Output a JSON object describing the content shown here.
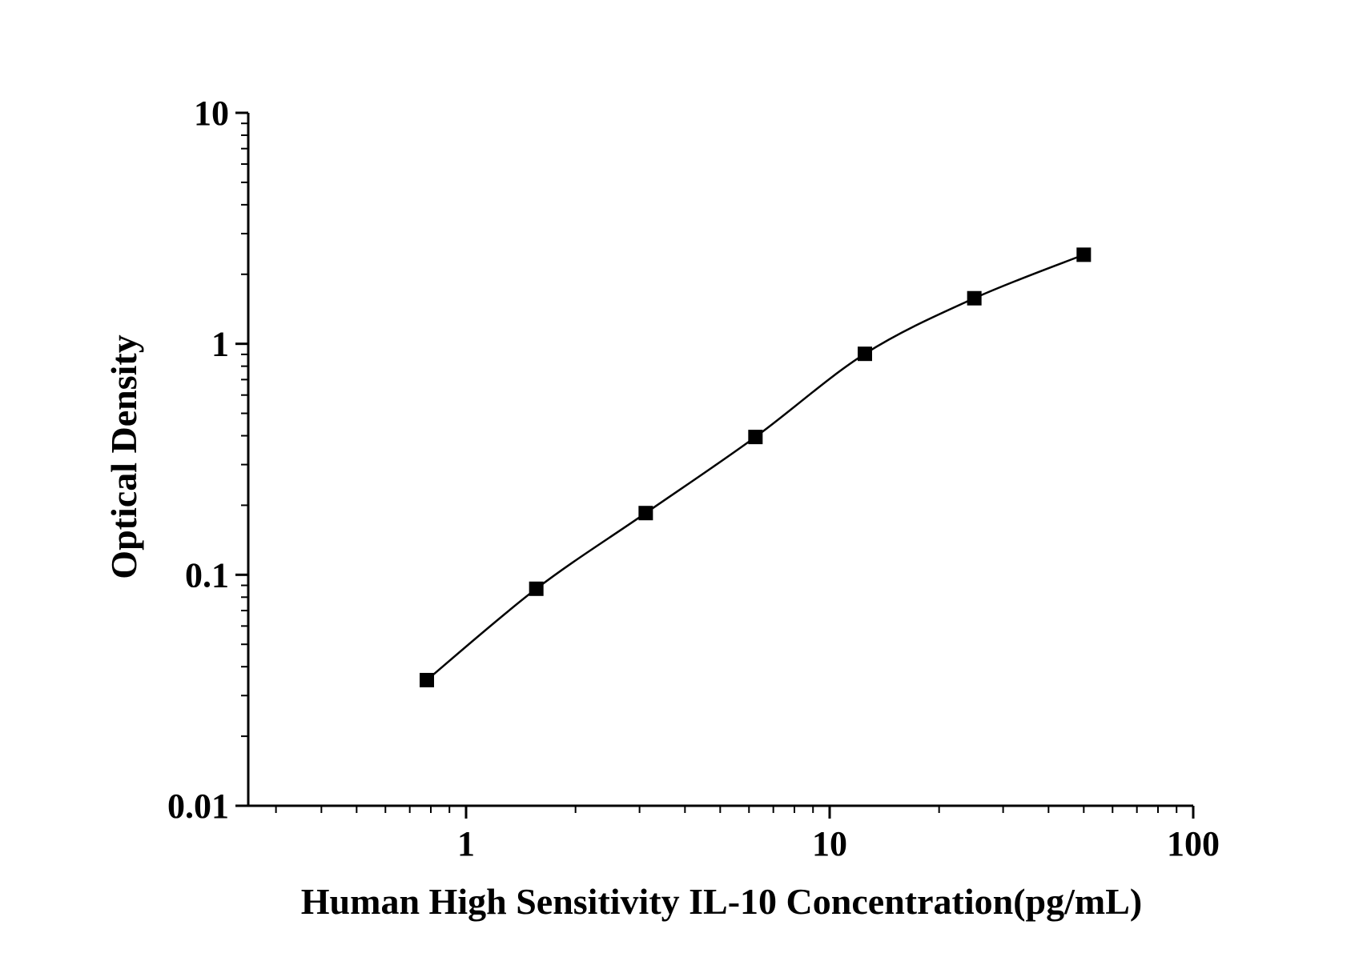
{
  "chart_data": {
    "type": "scatter",
    "title": "",
    "xlabel": "Human High Sensitivity IL-10 Concentration(pg/mL)",
    "ylabel": "Optical Density",
    "xscale": "log",
    "yscale": "log",
    "xlim": [
      0.25,
      100
    ],
    "ylim": [
      0.01,
      10
    ],
    "x_ticks": [
      {
        "value": 1,
        "label": "1"
      },
      {
        "value": 10,
        "label": "10"
      },
      {
        "value": 100,
        "label": "100"
      }
    ],
    "y_ticks": [
      {
        "value": 0.01,
        "label": "0.01"
      },
      {
        "value": 0.1,
        "label": "0.1"
      },
      {
        "value": 1,
        "label": "1"
      },
      {
        "value": 10,
        "label": "10"
      }
    ],
    "grid": false,
    "legend": "none",
    "connect_points": true,
    "marker": "square",
    "color": "#000000",
    "series": [
      {
        "x": [
          0.78,
          1.56,
          3.12,
          6.25,
          12.5,
          25,
          50
        ],
        "y": [
          0.035,
          0.087,
          0.185,
          0.395,
          0.905,
          1.575,
          2.43
        ]
      }
    ]
  }
}
